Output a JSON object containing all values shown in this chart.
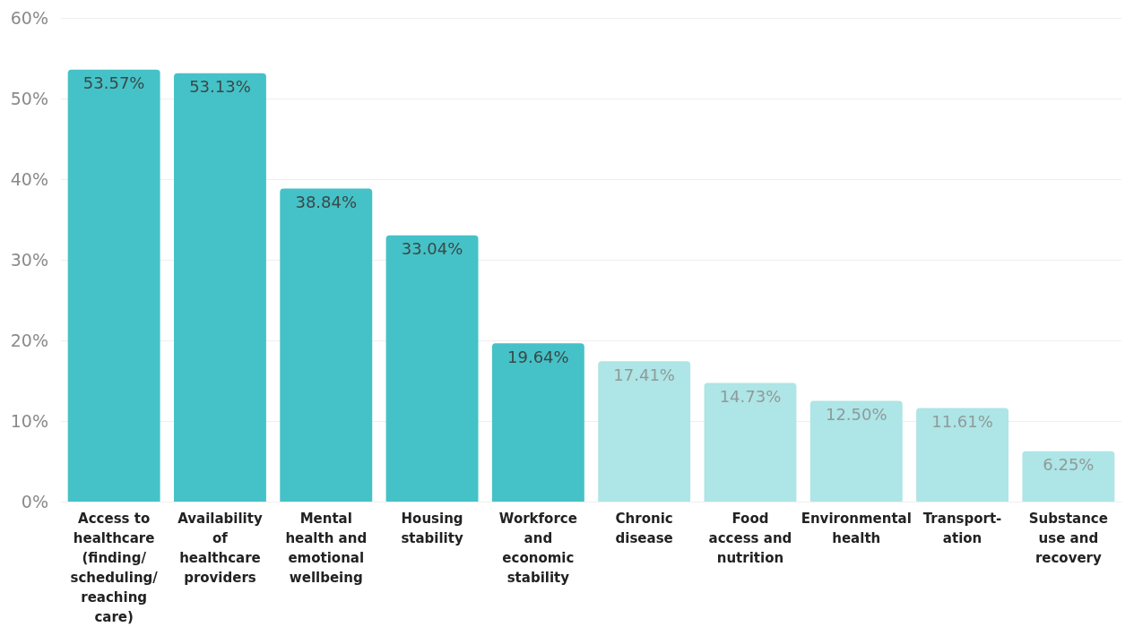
{
  "chart_data": {
    "type": "bar",
    "categories": [
      "Access to\nhealthcare\n(finding/\nscheduling/\nreaching\ncare)",
      "Availability\nof\nhealthcare\nproviders",
      "Mental\nhealth and\nemotional\nwellbeing",
      "Housing\nstability",
      "Workforce\nand\neconomic\nstability",
      "Chronic\ndisease",
      "Food\naccess and\nnutrition",
      "Environmental\nhealth",
      "Transport-\nation",
      "Substance\nuse and\nrecovery"
    ],
    "values": [
      53.57,
      53.13,
      38.84,
      33.04,
      19.64,
      17.41,
      14.73,
      12.5,
      11.61,
      6.25
    ],
    "value_labels": [
      "53.57%",
      "53.13%",
      "38.84%",
      "33.04%",
      "19.64%",
      "17.41%",
      "14.73%",
      "12.50%",
      "11.61%",
      "6.25%"
    ],
    "colors": [
      "#45c2c7",
      "#45c2c7",
      "#45c2c7",
      "#45c2c7",
      "#45c2c7",
      "#aee5e6",
      "#aee5e6",
      "#aee5e6",
      "#aee5e6",
      "#aee5e6"
    ],
    "ylim": [
      0,
      60
    ],
    "yticks": [
      {
        "value": 0,
        "label": "0%"
      },
      {
        "value": 10,
        "label": "10%"
      },
      {
        "value": 20,
        "label": "20%"
      },
      {
        "value": 30,
        "label": "30%"
      },
      {
        "value": 40,
        "label": "40%"
      },
      {
        "value": 50,
        "label": "50%"
      },
      {
        "value": 60,
        "label": "60%"
      }
    ],
    "grid": "y"
  }
}
